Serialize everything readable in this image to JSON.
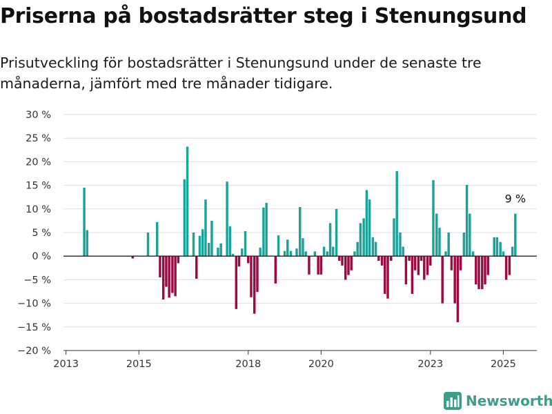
{
  "title": "Priserna på bostadsrätter steg i Stenungsund",
  "subtitle": "Prisutveckling för bostadsrätter i Stenungsund under de senaste tre månaderna, jämfört med tre månader tidigare.",
  "brand": {
    "name": "Newsworthy",
    "icon": "bar-chart-logo-icon"
  },
  "colors": {
    "positive": "#1ba399",
    "negative": "#9c0a43",
    "grid": "#dddddd",
    "axis": "#333333",
    "text": "#333333",
    "brand": "#3a9e8a"
  },
  "chart_data": {
    "type": "bar",
    "title": "",
    "xlabel": "",
    "ylabel": "",
    "ylim": [
      -20,
      30
    ],
    "yticks": [
      -20,
      -15,
      -10,
      -5,
      0,
      5,
      10,
      15,
      20,
      25,
      30
    ],
    "ytick_labels": [
      "−20 %",
      "−15 %",
      "−10 %",
      "−5 %",
      "0 %",
      "5 %",
      "10 %",
      "15 %",
      "20 %",
      "25 %",
      "30 %"
    ],
    "x_axis": {
      "range": [
        2012.93,
        2025.92
      ],
      "ticks": [
        2013,
        2015,
        2018,
        2020,
        2023,
        2025
      ]
    },
    "grid": "horizontal",
    "annotation": {
      "text": "9 %",
      "x": 2025.33
    },
    "series": [
      {
        "values": [
          [
            2013.5,
            14.5
          ],
          [
            2013.58,
            5.5
          ],
          [
            2014.83,
            -0.5
          ],
          [
            2015.25,
            5
          ],
          [
            2015.5,
            7.2
          ],
          [
            2015.58,
            -4.5
          ],
          [
            2015.67,
            -9.2
          ],
          [
            2015.75,
            -6.5
          ],
          [
            2015.83,
            -8.8
          ],
          [
            2015.92,
            -7.8
          ],
          [
            2016.0,
            -8.5
          ],
          [
            2016.08,
            -1.5
          ],
          [
            2016.25,
            16.3
          ],
          [
            2016.33,
            23.2
          ],
          [
            2016.5,
            5
          ],
          [
            2016.58,
            -4.8
          ],
          [
            2016.67,
            4.3
          ],
          [
            2016.75,
            5.7
          ],
          [
            2016.83,
            12
          ],
          [
            2016.92,
            2.8
          ],
          [
            2017.0,
            7.5
          ],
          [
            2017.17,
            1.8
          ],
          [
            2017.25,
            2.7
          ],
          [
            2017.42,
            15.8
          ],
          [
            2017.5,
            6.3
          ],
          [
            2017.58,
            0.5
          ],
          [
            2017.67,
            -11.2
          ],
          [
            2017.75,
            -2.2
          ],
          [
            2017.83,
            1.6
          ],
          [
            2017.92,
            5.3
          ],
          [
            2018.0,
            -1.5
          ],
          [
            2018.08,
            -8.7
          ],
          [
            2018.17,
            -12.2
          ],
          [
            2018.25,
            -7.6
          ],
          [
            2018.33,
            1.8
          ],
          [
            2018.42,
            10.3
          ],
          [
            2018.5,
            11.3
          ],
          [
            2018.75,
            -5.8
          ],
          [
            2018.83,
            4.4
          ],
          [
            2019.0,
            1.1
          ],
          [
            2019.08,
            3.5
          ],
          [
            2019.17,
            1.1
          ],
          [
            2019.33,
            1.6
          ],
          [
            2019.42,
            10.4
          ],
          [
            2019.5,
            3.8
          ],
          [
            2019.58,
            1
          ],
          [
            2019.67,
            -3.9
          ],
          [
            2019.83,
            1
          ],
          [
            2019.92,
            -3.9
          ],
          [
            2020.0,
            -3.9
          ],
          [
            2020.08,
            2
          ],
          [
            2020.17,
            1
          ],
          [
            2020.25,
            7
          ],
          [
            2020.33,
            2
          ],
          [
            2020.42,
            10
          ],
          [
            2020.5,
            -1
          ],
          [
            2020.58,
            -2
          ],
          [
            2020.67,
            -5
          ],
          [
            2020.75,
            -4
          ],
          [
            2020.83,
            -3
          ],
          [
            2020.92,
            1
          ],
          [
            2021.0,
            3
          ],
          [
            2021.08,
            7
          ],
          [
            2021.17,
            8
          ],
          [
            2021.25,
            14
          ],
          [
            2021.33,
            12
          ],
          [
            2021.42,
            4
          ],
          [
            2021.5,
            3
          ],
          [
            2021.58,
            -1
          ],
          [
            2021.67,
            -2
          ],
          [
            2021.75,
            -8
          ],
          [
            2021.83,
            -9
          ],
          [
            2021.92,
            -1
          ],
          [
            2022.0,
            8
          ],
          [
            2022.08,
            18
          ],
          [
            2022.17,
            5
          ],
          [
            2022.25,
            2
          ],
          [
            2022.33,
            -6
          ],
          [
            2022.42,
            -1
          ],
          [
            2022.5,
            -8
          ],
          [
            2022.58,
            -3
          ],
          [
            2022.67,
            -4
          ],
          [
            2022.75,
            -1
          ],
          [
            2022.83,
            -5
          ],
          [
            2022.92,
            -4
          ],
          [
            2023.0,
            -2
          ],
          [
            2023.08,
            16.1
          ],
          [
            2023.17,
            9
          ],
          [
            2023.25,
            6
          ],
          [
            2023.33,
            -10
          ],
          [
            2023.42,
            1
          ],
          [
            2023.5,
            5
          ],
          [
            2023.58,
            -3
          ],
          [
            2023.67,
            -10
          ],
          [
            2023.75,
            -14
          ],
          [
            2023.83,
            -3
          ],
          [
            2023.92,
            5
          ],
          [
            2024.0,
            15.1
          ],
          [
            2024.08,
            9
          ],
          [
            2024.17,
            1
          ],
          [
            2024.25,
            -6
          ],
          [
            2024.33,
            -7
          ],
          [
            2024.42,
            -7
          ],
          [
            2024.5,
            -6
          ],
          [
            2024.58,
            -4
          ],
          [
            2024.75,
            4
          ],
          [
            2024.83,
            4
          ],
          [
            2024.92,
            3
          ],
          [
            2025.0,
            1
          ],
          [
            2025.08,
            -5
          ],
          [
            2025.17,
            -4
          ],
          [
            2025.25,
            2
          ],
          [
            2025.33,
            9
          ]
        ]
      }
    ]
  }
}
